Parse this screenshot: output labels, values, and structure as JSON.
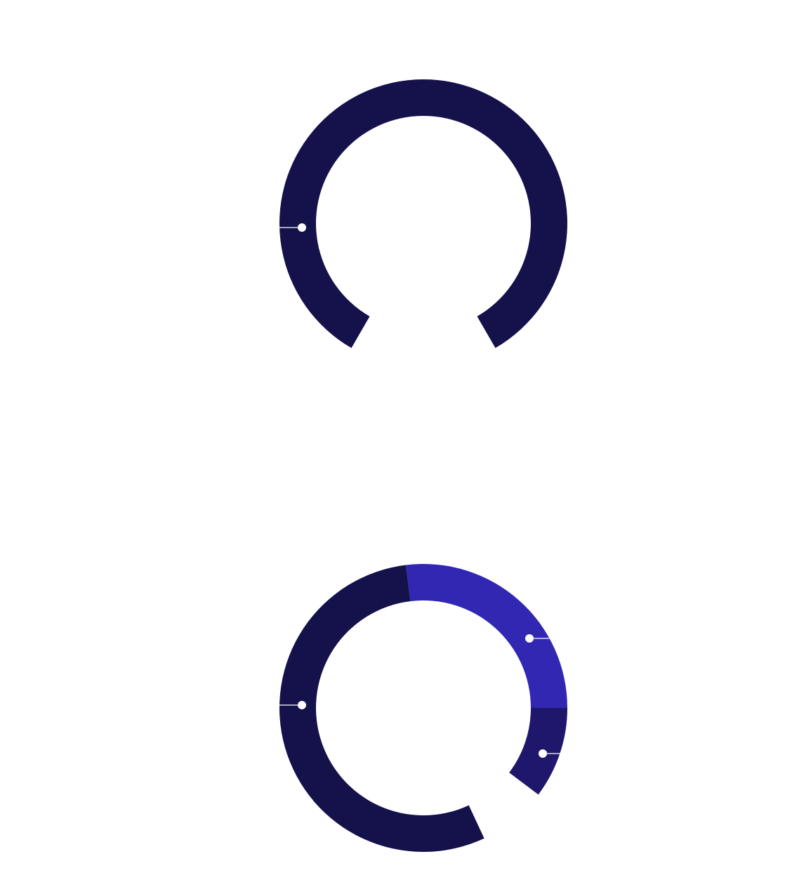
{
  "colors": {
    "background": "#ffffff",
    "dark_navy": "#15114b",
    "indigo": "#3127b2",
    "deep_indigo": "#1e176b",
    "marker": "#ffffff"
  },
  "chart_data": [
    {
      "type": "pie",
      "variant": "donut-gauge",
      "title": "",
      "gap": "bottom",
      "segments": [
        {
          "start_deg": 210,
          "end_deg": 510,
          "color": "dark_navy",
          "marker_side": "left"
        }
      ]
    },
    {
      "type": "pie",
      "variant": "donut-gauge",
      "title": "",
      "gap": "bottom-right",
      "segments": [
        {
          "start_deg": -7,
          "end_deg": 90,
          "color": "indigo",
          "marker_side": "right"
        },
        {
          "start_deg": 90,
          "end_deg": 127,
          "color": "deep_indigo",
          "marker_side": "right"
        },
        {
          "start_deg": 155,
          "end_deg": 353,
          "color": "dark_navy",
          "marker_side": "left"
        }
      ]
    }
  ]
}
